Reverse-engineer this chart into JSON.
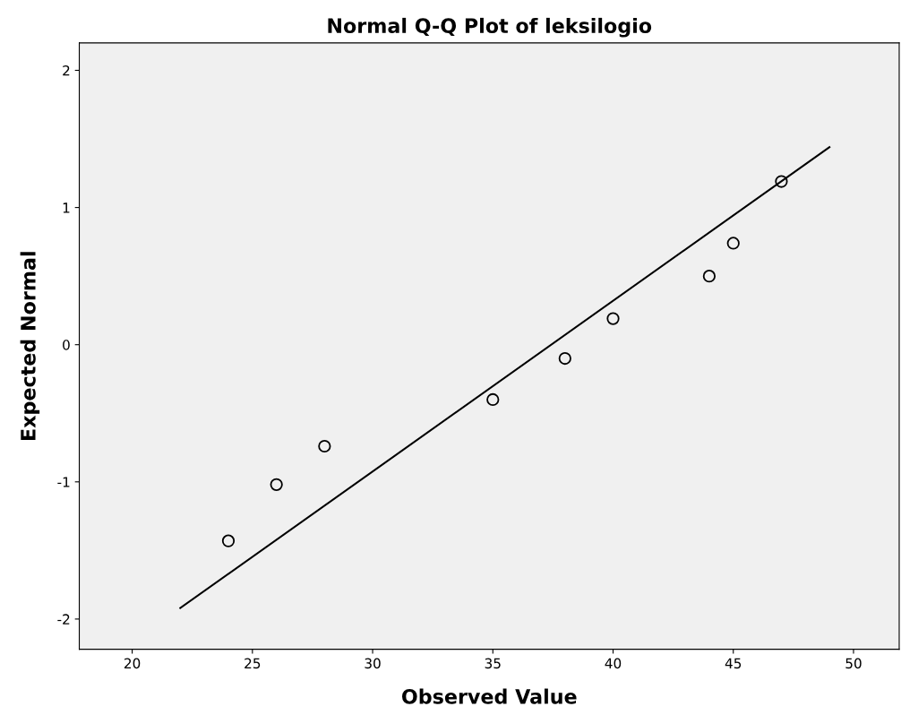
{
  "chart_data": {
    "type": "scatter",
    "title": "Normal Q-Q Plot of leksilogio",
    "xlabel": "Observed Value",
    "ylabel": "Expected Normal",
    "xlim": [
      17.8,
      51.9
    ],
    "ylim": [
      -2.22,
      2.2
    ],
    "xticks": [
      20,
      25,
      30,
      35,
      40,
      45,
      50
    ],
    "yticks": [
      -2,
      -1,
      0,
      1,
      2
    ],
    "grid": false,
    "legend": false,
    "series": [
      {
        "color": "#000000",
        "marker": "circle",
        "x": [
          24,
          26,
          28,
          35,
          38,
          40,
          44,
          45,
          47
        ],
        "values": [
          -1.43,
          -1.02,
          -0.74,
          -0.4,
          -0.1,
          0.19,
          0.5,
          0.74,
          1.19
        ]
      },
      {
        "type": "line",
        "color": "#000000",
        "line_style": "solid",
        "x": [
          22,
          49
        ],
        "values": [
          -1.92,
          1.44
        ]
      }
    ]
  }
}
